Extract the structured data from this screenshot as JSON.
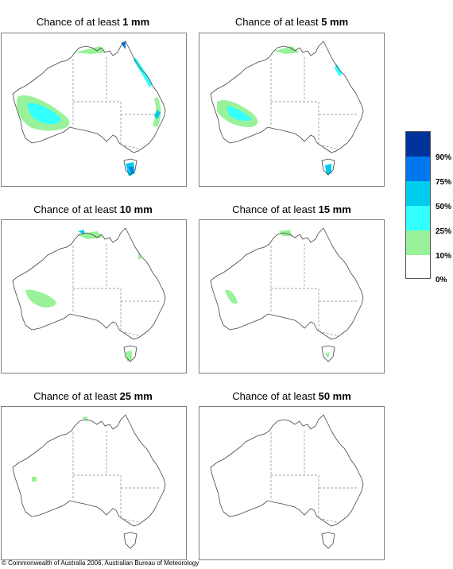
{
  "panels": [
    {
      "title_prefix": "Chance of at least ",
      "title_value": "1 mm"
    },
    {
      "title_prefix": "Chance of at least ",
      "title_value": "5 mm"
    },
    {
      "title_prefix": "Chance of at least ",
      "title_value": "10 mm"
    },
    {
      "title_prefix": "Chance of at least ",
      "title_value": "15 mm"
    },
    {
      "title_prefix": "Chance of at least ",
      "title_value": "25 mm"
    },
    {
      "title_prefix": "Chance of at least ",
      "title_value": "50 mm"
    }
  ],
  "legend": {
    "labels": [
      "90%",
      "75%",
      "50%",
      "25%",
      "10%",
      "0%"
    ],
    "colors": [
      "#ffffff",
      "#99f299",
      "#33ffff",
      "#00ccee",
      "#0077ee",
      "#003399"
    ]
  },
  "copyright": "© Commonwealth of Australia 2006, Australian Bureau of Meteorology"
}
